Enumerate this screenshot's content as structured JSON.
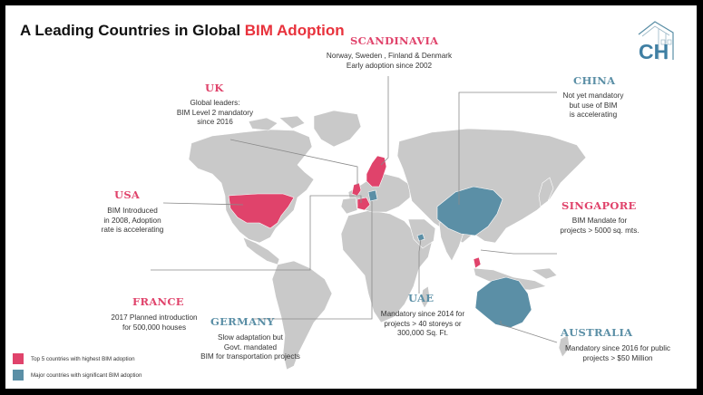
{
  "title": {
    "prefix": "A Leading Countries in Global ",
    "accent": "BIM Adoption"
  },
  "colors": {
    "pink": "#e0436b",
    "blue": "#5b8fa6",
    "land": "#c9c9c9",
    "title_accent": "#e8323c"
  },
  "logo": {
    "icon": "ch-building-logo",
    "text": "CH"
  },
  "countries": [
    {
      "id": "scandinavia",
      "name": "SCANDINAVIA",
      "lines": [
        "Norway, Sweden , Finland & Denmark",
        "Early adoption since 2002"
      ]
    },
    {
      "id": "uk",
      "name": "UK",
      "lines": [
        "Global leaders:",
        "BIM Level 2 mandatory",
        "since 2016"
      ]
    },
    {
      "id": "china",
      "name": "CHINA",
      "lines": [
        "Not yet mandatory",
        "but use of BIM",
        "is accelerating"
      ]
    },
    {
      "id": "usa",
      "name": "USA",
      "lines": [
        "BIM Introduced",
        "in 2008, Adoption",
        "rate is accelerating"
      ]
    },
    {
      "id": "singapore",
      "name": "SINGAPORE",
      "lines": [
        "BIM Mandate for",
        "projects > 5000 sq. mts."
      ]
    },
    {
      "id": "france",
      "name": "FRANCE",
      "lines": [
        "2017 Planned introduction",
        "for 500,000 houses"
      ]
    },
    {
      "id": "germany",
      "name": "GERMANY",
      "lines": [
        "Slow adaptation but",
        "Govt. mandated",
        "BIM for transportation projects"
      ]
    },
    {
      "id": "uae",
      "name": "UAE",
      "lines": [
        "Mandatory since 2014 for",
        "projects > 40 storeys or",
        "300,000 Sq. Ft."
      ]
    },
    {
      "id": "australia",
      "name": "AUSTRALIA",
      "lines": [
        "Mandatory since 2016  for public",
        "projects > $50 Million"
      ]
    }
  ],
  "legend": [
    {
      "color": "#e0436b",
      "label": "Top 5 countries with highest BIM adoption"
    },
    {
      "color": "#5b8fa6",
      "label": "Major countries with significant BIM adoption"
    }
  ]
}
